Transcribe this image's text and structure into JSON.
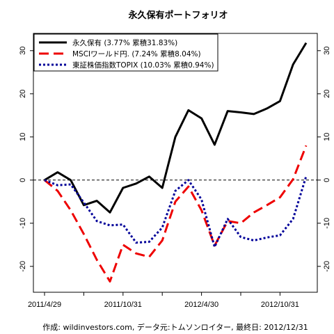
{
  "chart_data": {
    "type": "line",
    "title": "永久保有ポートフォリオ",
    "xlabel": "",
    "ylabel": "",
    "footer": "作成: wildinvestors.com, データ元:トムソンロイター, 最終日: 2012/12/31",
    "x": [
      "2011/4/29",
      "2011/5/31",
      "2011/6/30",
      "2011/7/29",
      "2011/8/31",
      "2011/9/30",
      "2011/10/31",
      "2011/11/30",
      "2011/12/30",
      "2012/1/31",
      "2012/2/29",
      "2012/3/30",
      "2012/4/30",
      "2012/5/31",
      "2012/6/29",
      "2012/7/31",
      "2012/8/31",
      "2012/9/28",
      "2012/10/31",
      "2012/11/30",
      "2012/12/31"
    ],
    "x_ticks": [
      "2011/4/29",
      "2011/10/31",
      "2012/4/30",
      "2012/10/31"
    ],
    "x_tick_index": [
      0,
      6,
      12,
      18
    ],
    "minor_tick_index": [
      3,
      9,
      15
    ],
    "ylim": [
      -26,
      34
    ],
    "y_ticks": [
      -20,
      -10,
      0,
      10,
      20,
      30
    ],
    "y_tick_labels": [
      "-20",
      "-10",
      "0",
      "10",
      "20",
      "30"
    ],
    "reference_line": 0,
    "grid": false,
    "legend_position": "top-left",
    "series": [
      {
        "name": "永久保有 (3.77% 累積31.83%)",
        "color": "#000000",
        "dash": "solid",
        "values": [
          0,
          1.8,
          0,
          -5.8,
          -4.8,
          -7.5,
          -1.8,
          -0.8,
          0.8,
          -1.8,
          10,
          16.2,
          14.3,
          8.2,
          16,
          15.7,
          15.3,
          16.6,
          18.3,
          26.8,
          31.8
        ]
      },
      {
        "name": "MSCIワールド円. (7.24% 累積8.04%)",
        "color": "#ee0000",
        "dash": "dashed",
        "values": [
          0,
          -2.5,
          -7,
          -12.5,
          -18.5,
          -23.5,
          -15,
          -17,
          -17.8,
          -14,
          -5,
          -1.5,
          -7,
          -15.2,
          -9.5,
          -10,
          -7.5,
          -5.8,
          -4,
          0.2,
          8
        ]
      },
      {
        "name": "東証株価指数TOPIX (10.03% 累積0.94%)",
        "color": "#000099",
        "dash": "dotted",
        "values": [
          0,
          -1.2,
          -1,
          -5.2,
          -9.5,
          -10.5,
          -10.3,
          -14.5,
          -14.3,
          -11,
          -2.5,
          0,
          -4.5,
          -15.5,
          -9,
          -13.2,
          -14,
          -13.3,
          -12.8,
          -9,
          0.9
        ]
      }
    ]
  }
}
